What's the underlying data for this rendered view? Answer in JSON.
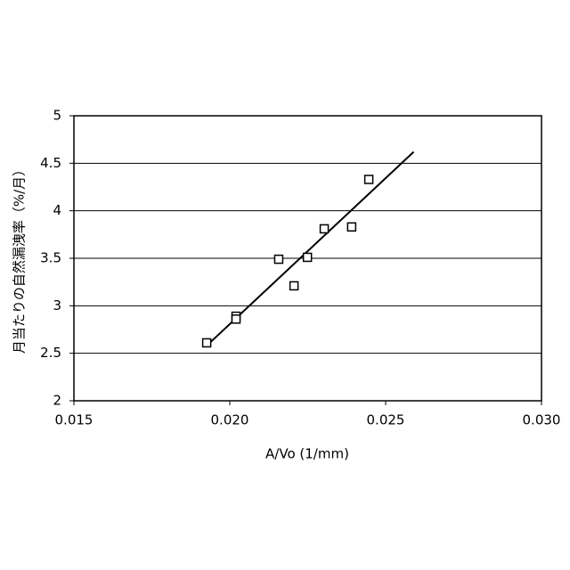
{
  "chart_data": {
    "type": "scatter",
    "xlabel": "A/Vo (1/mm)",
    "ylabel": "月当たりの自然漏洩率（%/月）",
    "series": [
      {
        "color": "#000000",
        "x": [
          0.01926,
          0.0202,
          0.0202,
          0.02157,
          0.02249,
          0.02206,
          0.02303,
          0.02391,
          0.02446
        ],
        "values": [
          2.61,
          2.89,
          2.86,
          3.49,
          3.51,
          3.21,
          3.81,
          3.83,
          4.33
        ]
      }
    ],
    "trendline": {
      "x": [
        0.01926,
        0.0259
      ],
      "y": [
        2.58,
        4.62
      ]
    },
    "xlim": [
      0.015,
      0.03
    ],
    "xticks": [
      0.015,
      {
        "value": 0.02,
        "label": "0.020"
      },
      0.025,
      {
        "value": 0.03,
        "label": "0.030"
      }
    ],
    "ylim": [
      2,
      5
    ],
    "yticks": [
      2,
      2.5,
      3,
      3.5,
      4,
      4.5,
      5
    ],
    "grid": true
  }
}
